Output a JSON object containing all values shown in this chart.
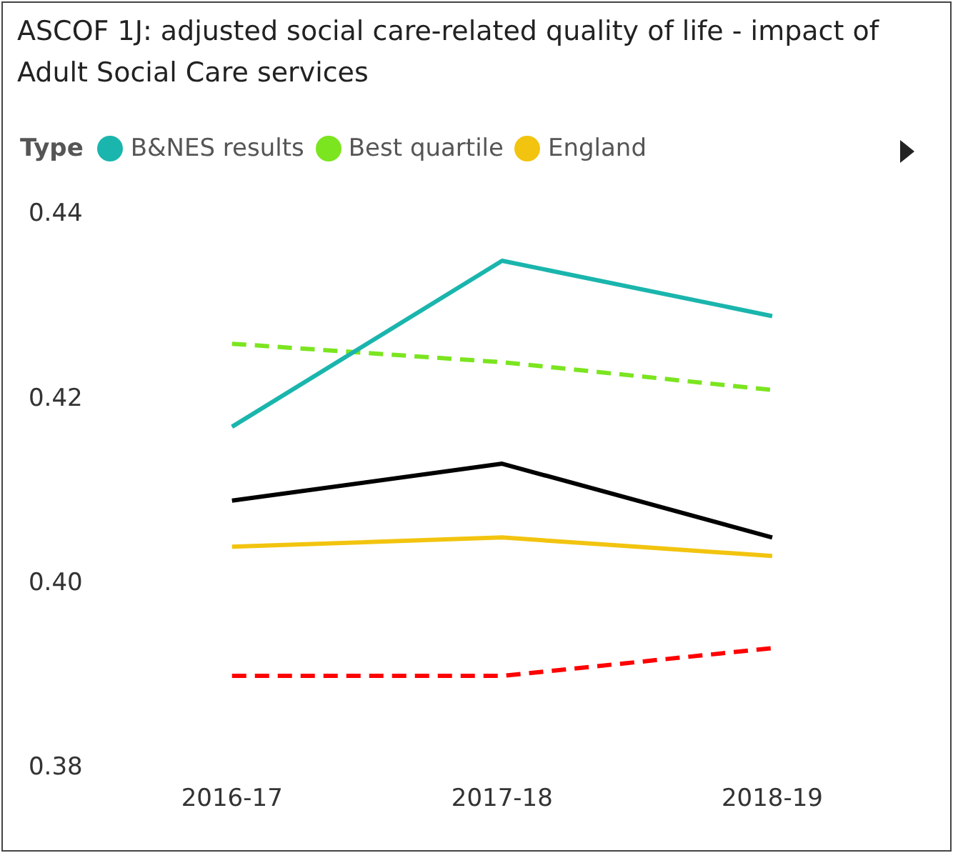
{
  "chart_data": {
    "type": "line",
    "title": "ASCOF 1J: adjusted social care-related quality of life - impact of Adult Social Care services",
    "legend_title": "Type",
    "legend": "top left",
    "grid": false,
    "marker": "none",
    "categories": [
      "2016-17",
      "2017-18",
      "2018-19"
    ],
    "ylim": [
      0.38,
      0.44
    ],
    "yticks": [
      {
        "value": 0.38,
        "label": "0.38"
      },
      {
        "value": 0.4,
        "label": "0.40"
      },
      {
        "value": 0.42,
        "label": "0.42"
      },
      {
        "value": 0.44,
        "label": "0.44"
      }
    ],
    "series": [
      {
        "name": "B&NES results",
        "color": "#1ab5ad",
        "values": [
          0.417,
          0.435,
          0.429
        ]
      },
      {
        "name": "Best quartile",
        "color": "#7be51f",
        "line_style": "dashed",
        "values": [
          0.426,
          0.424,
          0.421
        ]
      },
      {
        "name": "England",
        "color": "#f2c40f",
        "values": [
          0.404,
          0.405,
          0.403
        ]
      },
      {
        "color": "#000000",
        "values": [
          0.409,
          0.413,
          0.405
        ]
      },
      {
        "color": "#ff0000",
        "line_style": "dashed",
        "values": [
          0.39,
          0.39,
          0.393
        ]
      }
    ]
  }
}
